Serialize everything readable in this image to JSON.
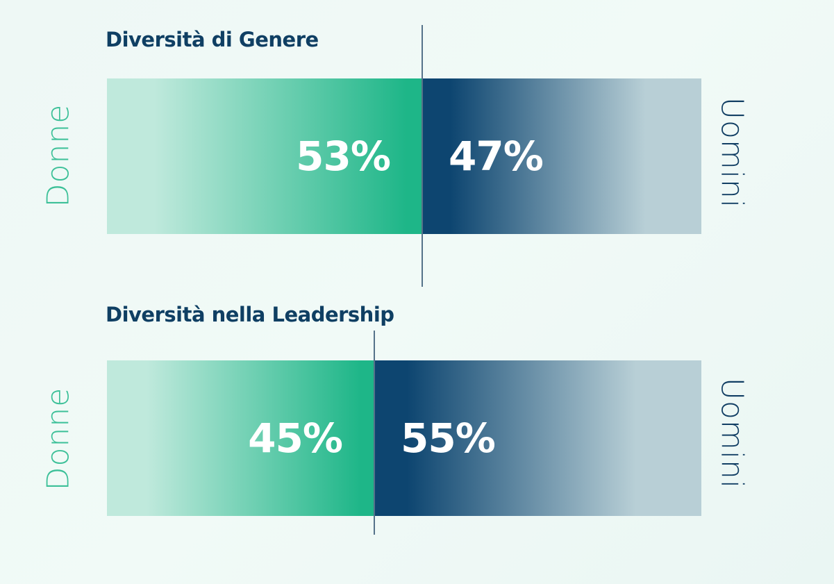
{
  "colors": {
    "women_dark": "#1eb688",
    "women_light": "#bfe9dc",
    "men_dark": "#0d4570",
    "men_light": "#b8cfd6"
  },
  "chart_data": [
    {
      "type": "bar",
      "orientation": "horizontal-stacked-100",
      "title": "Diversità di Genere",
      "series": [
        {
          "name": "Donne",
          "value": 53,
          "label": "53%"
        },
        {
          "name": "Uomini",
          "value": 47,
          "label": "47%"
        }
      ],
      "left_axis_label": "Donne",
      "right_axis_label": "Uomini"
    },
    {
      "type": "bar",
      "orientation": "horizontal-stacked-100",
      "title": "Diversità nella Leadership",
      "series": [
        {
          "name": "Donne",
          "value": 45,
          "label": "45%"
        },
        {
          "name": "Uomini",
          "value": 55,
          "label": "55%"
        }
      ],
      "left_axis_label": "Donne",
      "right_axis_label": "Uomini"
    }
  ]
}
